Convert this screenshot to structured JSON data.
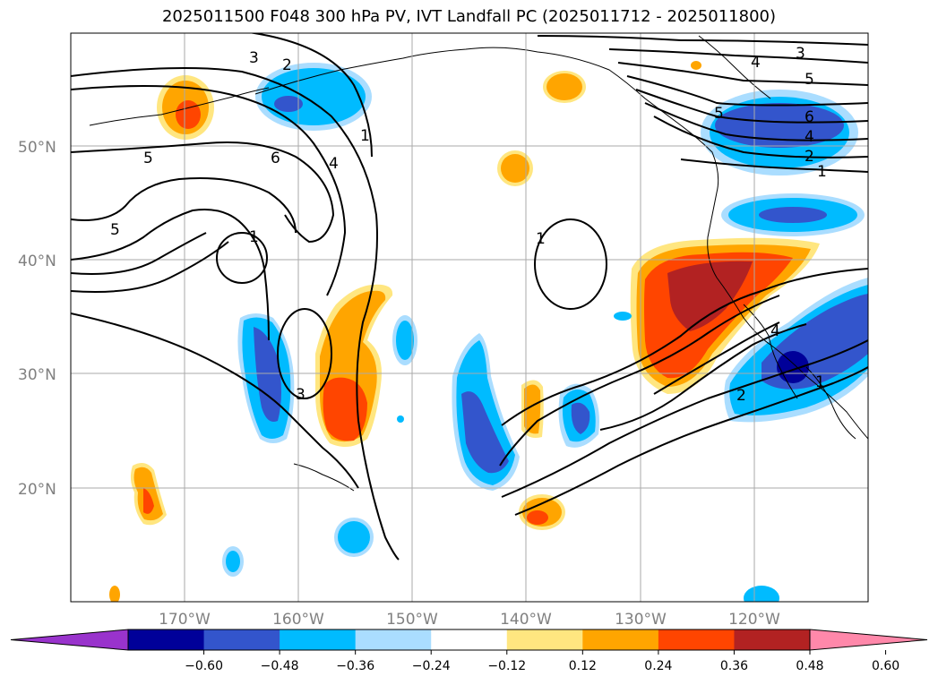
{
  "title": "2025011500 F048 300 hPa PV, IVT Landfall PC (2025011712 - 2025011800)",
  "lat_labels": [
    "50°N",
    "40°N",
    "30°N",
    "20°N"
  ],
  "lon_labels": [
    "170°W",
    "160°W",
    "150°W",
    "140°W",
    "130°W",
    "120°W"
  ],
  "colorbar": {
    "ticks": [
      "−0.60",
      "−0.48",
      "−0.36",
      "−0.24",
      "−0.12",
      "0.12",
      "0.24",
      "0.36",
      "0.48",
      "0.60"
    ],
    "colors": [
      "#9933cc",
      "#000099",
      "#3355cc",
      "#00bbff",
      "#aaddff",
      "#ffffff",
      "#ffe680",
      "#ffa500",
      "#ff4500",
      "#b22222",
      "#ff88aa"
    ]
  },
  "contour_labels": [
    "1",
    "2",
    "3",
    "4",
    "5",
    "6"
  ]
}
